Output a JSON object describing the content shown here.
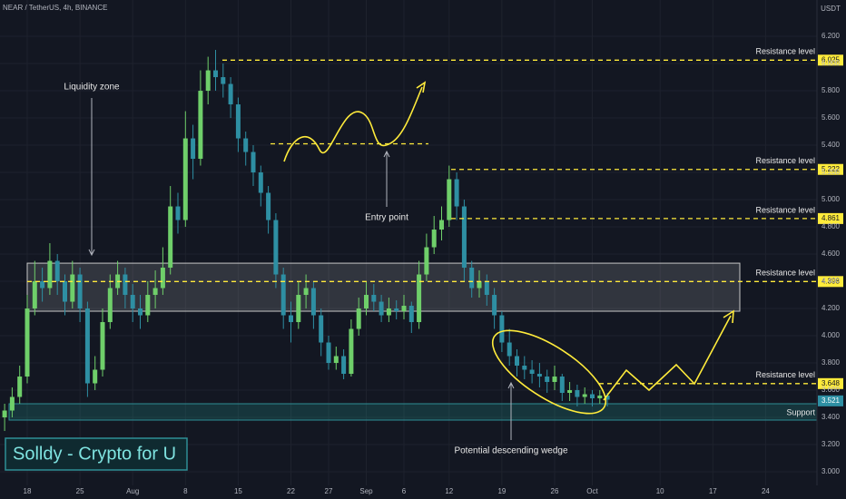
{
  "chart_data": {
    "type": "candlestick",
    "header": "NEAR / TetherUS, 4h, BINANCE",
    "currency": "USDT",
    "watermark": "Solldy - Crypto for U",
    "up_color": "#6fcf6a",
    "down_color": "#2e8fa3",
    "categories": [
      null,
      null,
      null,
      "18",
      null,
      null,
      null,
      null,
      null,
      null,
      "25",
      null,
      null,
      null,
      null,
      null,
      null,
      "Aug",
      null,
      null,
      null,
      null,
      null,
      null,
      "8",
      null,
      null,
      null,
      null,
      null,
      null,
      "15",
      null,
      null,
      null,
      null,
      null,
      null,
      "22",
      null,
      null,
      null,
      null,
      "27",
      null,
      null,
      null,
      null,
      "Sep",
      null,
      null,
      null,
      null,
      "6",
      null,
      null,
      null,
      null,
      null,
      "12",
      null,
      null,
      null,
      null,
      null,
      null,
      "19",
      null,
      null,
      null,
      null,
      null,
      null,
      "26",
      null,
      null,
      null,
      null,
      "Oct",
      null,
      null,
      null,
      null,
      null,
      null,
      null,
      null,
      "10",
      null,
      null,
      null,
      null,
      null,
      null,
      "17",
      null,
      null,
      null,
      null,
      null,
      null,
      "24"
    ],
    "open": [
      3.4,
      3.45,
      3.55,
      3.7,
      4.2,
      4.4,
      4.35,
      4.55,
      4.4,
      4.25,
      4.45,
      4.2,
      3.65,
      3.75,
      4.1,
      4.35,
      4.45,
      4.3,
      4.2,
      4.15,
      4.3,
      4.35,
      4.5,
      4.95,
      4.85,
      5.45,
      5.3,
      5.8,
      5.95,
      5.9,
      5.85,
      5.7,
      5.45,
      5.35,
      5.2,
      5.05,
      4.85,
      4.45,
      4.15,
      4.1,
      4.3,
      4.35,
      4.15,
      3.95,
      3.8,
      3.85,
      3.72,
      4.05,
      4.2,
      4.3,
      4.25,
      4.15,
      4.2,
      4.18,
      4.22,
      4.1,
      4.45,
      4.65,
      4.78,
      4.85,
      5.15,
      4.95,
      4.5,
      4.35,
      4.4,
      4.3,
      4.15,
      3.95,
      3.85,
      3.78,
      3.75,
      3.72,
      3.7,
      3.66,
      3.7,
      3.58,
      3.6,
      3.55,
      3.57,
      3.54,
      3.56,
      null,
      null,
      null,
      null,
      null,
      null,
      null,
      null,
      null,
      null,
      null,
      null,
      null,
      null,
      null,
      null,
      null,
      null,
      null,
      null,
      null
    ],
    "high": [
      3.5,
      3.62,
      3.78,
      4.3,
      4.55,
      4.5,
      4.68,
      4.6,
      4.45,
      4.55,
      4.5,
      4.25,
      3.85,
      4.2,
      4.45,
      4.55,
      4.5,
      4.38,
      4.3,
      4.4,
      4.48,
      4.65,
      5.1,
      5.05,
      5.65,
      5.55,
      5.95,
      6.05,
      6.1,
      6.0,
      5.9,
      5.75,
      5.5,
      5.4,
      5.25,
      5.1,
      4.9,
      4.5,
      4.25,
      4.4,
      4.45,
      4.4,
      4.2,
      4.0,
      3.92,
      3.9,
      4.12,
      4.28,
      4.4,
      4.38,
      4.3,
      4.28,
      4.26,
      4.3,
      4.25,
      4.55,
      4.75,
      4.88,
      4.95,
      5.25,
      5.2,
      5.0,
      4.55,
      4.48,
      4.45,
      4.35,
      4.18,
      4.05,
      3.9,
      3.85,
      3.82,
      3.8,
      3.75,
      3.78,
      3.72,
      3.66,
      3.64,
      3.62,
      3.6,
      3.6,
      3.58,
      null,
      null,
      null,
      null,
      null,
      null,
      null,
      null,
      null,
      null,
      null,
      null,
      null,
      null,
      null,
      null,
      null,
      null,
      null,
      null,
      null
    ],
    "low": [
      3.3,
      3.4,
      3.5,
      3.65,
      4.15,
      4.25,
      4.3,
      4.3,
      4.15,
      4.2,
      4.1,
      3.55,
      3.6,
      3.7,
      4.05,
      4.3,
      4.2,
      4.1,
      4.05,
      4.1,
      4.2,
      4.3,
      4.45,
      4.75,
      4.8,
      5.15,
      5.25,
      5.7,
      5.8,
      5.75,
      5.6,
      5.35,
      5.25,
      5.1,
      4.95,
      4.75,
      4.35,
      4.05,
      3.95,
      4.05,
      4.2,
      4.05,
      3.85,
      3.75,
      3.75,
      3.68,
      3.7,
      4.0,
      4.15,
      4.18,
      4.1,
      4.1,
      4.12,
      4.12,
      4.02,
      4.05,
      4.4,
      4.6,
      4.7,
      4.8,
      4.85,
      4.4,
      4.28,
      4.28,
      4.22,
      4.05,
      3.88,
      3.78,
      3.7,
      3.68,
      3.65,
      3.62,
      3.58,
      3.6,
      3.52,
      3.52,
      3.48,
      3.5,
      3.48,
      3.5,
      3.48,
      null,
      null,
      null,
      null,
      null,
      null,
      null,
      null,
      null,
      null,
      null,
      null,
      null,
      null,
      null,
      null,
      null,
      null,
      null,
      null,
      null
    ],
    "close": [
      3.45,
      3.55,
      3.7,
      4.2,
      4.4,
      4.35,
      4.55,
      4.4,
      4.25,
      4.45,
      4.2,
      3.65,
      3.75,
      4.1,
      4.35,
      4.45,
      4.3,
      4.2,
      4.15,
      4.3,
      4.35,
      4.5,
      4.95,
      4.85,
      5.45,
      5.3,
      5.8,
      5.95,
      5.9,
      5.85,
      5.7,
      5.45,
      5.35,
      5.2,
      5.05,
      4.85,
      4.45,
      4.15,
      4.1,
      4.3,
      4.35,
      4.15,
      3.95,
      3.8,
      3.85,
      3.72,
      4.05,
      4.2,
      4.3,
      4.25,
      4.15,
      4.2,
      4.18,
      4.22,
      4.1,
      4.45,
      4.65,
      4.78,
      4.85,
      5.15,
      4.95,
      4.5,
      4.35,
      4.4,
      4.3,
      4.15,
      3.95,
      3.85,
      3.78,
      3.75,
      3.72,
      3.7,
      3.66,
      3.7,
      3.58,
      3.6,
      3.55,
      3.57,
      3.54,
      3.56,
      3.53,
      null,
      null,
      null,
      null,
      null,
      null,
      null,
      null,
      null,
      null,
      null,
      null,
      null,
      null,
      null,
      null,
      null,
      null,
      null,
      null,
      null
    ],
    "ylim": [
      2.9,
      6.467
    ],
    "yticks": [
      {
        "value": 3.0,
        "label": "3.000"
      },
      {
        "value": 3.2,
        "label": "3.200"
      },
      {
        "value": 3.4,
        "label": "3.400"
      },
      {
        "value": 3.6,
        "label": "3.600"
      },
      {
        "value": 3.8,
        "label": "3.800"
      },
      {
        "value": 4.0,
        "label": "4.000"
      },
      {
        "value": 4.2,
        "label": "4.200"
      },
      {
        "value": 4.4,
        "label": "4.400"
      },
      {
        "value": 4.6,
        "label": "4.600"
      },
      {
        "value": 4.8,
        "label": "4.800"
      },
      {
        "value": 5.0,
        "label": "5.000"
      },
      {
        "value": 5.2,
        "label": "5.200"
      },
      {
        "value": 5.4,
        "label": "5.400"
      },
      {
        "value": 5.6,
        "label": "5.600"
      },
      {
        "value": 5.8,
        "label": "5.800"
      },
      {
        "value": 6.0,
        "label": "6.000"
      },
      {
        "value": 6.2,
        "label": "6.200"
      }
    ],
    "grid": true,
    "levels": [
      {
        "name": "Resistance level",
        "value": 6.025
      },
      {
        "name": "Resistance level",
        "value": 5.222
      },
      {
        "name": "Resistance level",
        "value": 4.861
      },
      {
        "name": "Resistance level",
        "value": 4.398
      },
      {
        "name": "Resistance level",
        "value": 3.648
      }
    ],
    "last_price": 3.521,
    "liquidity_zone": {
      "name": "Liquidity zone",
      "low": 4.18,
      "high": 4.533
    },
    "support_zone": {
      "name": "Support",
      "low": 3.38,
      "high": 3.5
    },
    "entry": {
      "name": "Entry point",
      "value": 5.41
    },
    "wedge_label": "Potential descending wedge"
  }
}
